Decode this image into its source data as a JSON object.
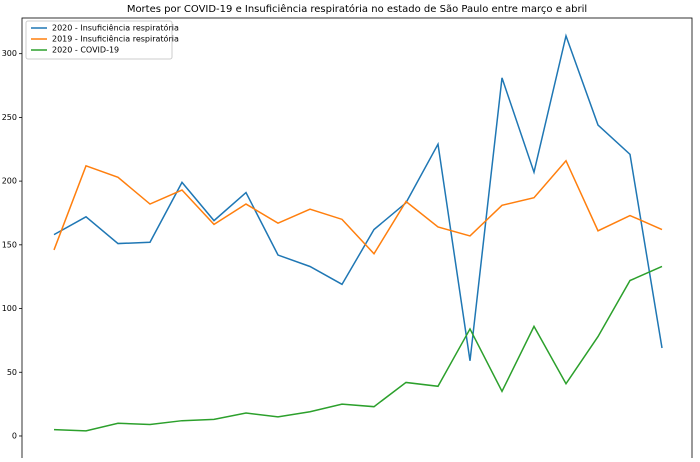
{
  "chart_data": {
    "type": "line",
    "title": "Mortes por COVID-19 e Insuficiência respiratória no estado de São Paulo entre março e abril",
    "categories": [
      null,
      null,
      null,
      null,
      null,
      null,
      null,
      null,
      null,
      null,
      null,
      null,
      null,
      null,
      null,
      null,
      null,
      null,
      null,
      null
    ],
    "series": [
      {
        "name": "2020 - Insuficiência respiratória",
        "color": "#1f77b4",
        "values": [
          158,
          172,
          151,
          152,
          199,
          169,
          191,
          142,
          133,
          119,
          162,
          183,
          229,
          59,
          281,
          207,
          314,
          244,
          221,
          69
        ]
      },
      {
        "name": "2019 - Insuficiência respiratória",
        "color": "#ff7f0e",
        "values": [
          146,
          212,
          203,
          182,
          193,
          166,
          182,
          167,
          178,
          170,
          143,
          184,
          164,
          157,
          181,
          187,
          216,
          161,
          173,
          162
        ]
      },
      {
        "name": "2020 - COVID-19",
        "color": "#2ca02c",
        "values": [
          5,
          4,
          10,
          9,
          12,
          13,
          18,
          15,
          19,
          25,
          23,
          42,
          39,
          84,
          35,
          86,
          41,
          78,
          122,
          133
        ]
      }
    ],
    "ylim": [
      -11,
      328
    ],
    "yticks": [
      0,
      50,
      100,
      150,
      200,
      250,
      300
    ],
    "legend": "upper left"
  }
}
